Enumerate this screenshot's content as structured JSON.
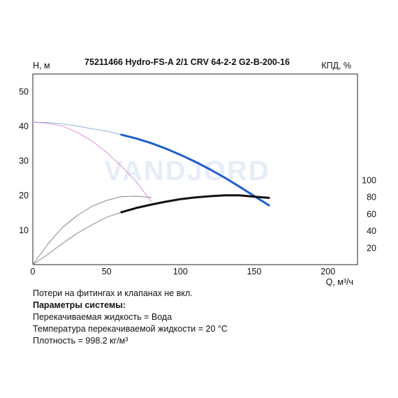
{
  "chart_data": {
    "type": "line",
    "title": "75211466 Hydro-FS-A 2/1 CRV 64-2-2 G2-B-200-16",
    "ylabel": "H, м",
    "y2label": "КПД, %",
    "xlabel": "Q, м³/ч",
    "xlim": [
      0,
      220
    ],
    "ylim": [
      0,
      55
    ],
    "y2lim": [
      0,
      100
    ],
    "xticks": [
      0,
      50,
      100,
      150,
      200
    ],
    "yticks": [
      10,
      20,
      30,
      40,
      50
    ],
    "y2ticks": [
      20,
      40,
      60,
      80,
      100
    ],
    "watermark": "VANDJORD",
    "series": [
      {
        "role": "head-pump-thin",
        "axis": "left",
        "color": "#8eb0d6",
        "x": [
          0,
          10,
          20,
          30,
          40,
          50,
          60
        ],
        "y": [
          41.1,
          41.0,
          40.6,
          40.0,
          39.2,
          38.5,
          37.5
        ]
      },
      {
        "role": "head-pump",
        "axis": "left",
        "color": "#1f5ec9",
        "x": [
          60,
          70,
          80,
          90,
          100,
          110,
          120,
          130,
          140,
          150,
          160
        ],
        "y": [
          37.5,
          36.4,
          35.1,
          33.5,
          31.7,
          29.7,
          27.5,
          25.1,
          22.5,
          19.8,
          17.1
        ]
      },
      {
        "role": "head-secondary",
        "axis": "left",
        "color": "#d47cd6",
        "x": [
          0,
          10,
          20,
          30,
          40,
          50,
          60,
          70,
          80
        ],
        "y": [
          41.1,
          40.8,
          40.0,
          38.2,
          35.7,
          32.4,
          28.4,
          24.0,
          18.3
        ]
      },
      {
        "role": "efficiency-pump-thin",
        "axis": "right",
        "color": "#888888",
        "x": [
          0,
          10,
          20,
          30,
          40,
          50,
          60
        ],
        "y": [
          0,
          12,
          25,
          37,
          47,
          56,
          62
        ]
      },
      {
        "role": "efficiency-pump",
        "axis": "right",
        "color": "#111111",
        "x": [
          60,
          70,
          80,
          90,
          100,
          110,
          120,
          130,
          140,
          150,
          160
        ],
        "y": [
          62,
          67,
          71,
          74.5,
          77.5,
          79.5,
          81,
          82,
          82,
          80.5,
          79
        ]
      },
      {
        "role": "efficiency-secondary",
        "axis": "right",
        "color": "#888888",
        "x": [
          0,
          10,
          20,
          30,
          40,
          50,
          60,
          70,
          80
        ],
        "y": [
          0,
          24,
          44,
          58,
          69,
          76,
          80.5,
          81,
          79.5
        ]
      }
    ]
  },
  "notes": {
    "line1": "Потери на фитингах и клапанах не вкл.",
    "line2": "Параметры системы:",
    "line3": "Перекачиваемая жидкость = Вода",
    "line4": "Температура перекачиваемой жидкости = 20 °C",
    "line5": "Плотность = 998.2 кг/м³"
  }
}
